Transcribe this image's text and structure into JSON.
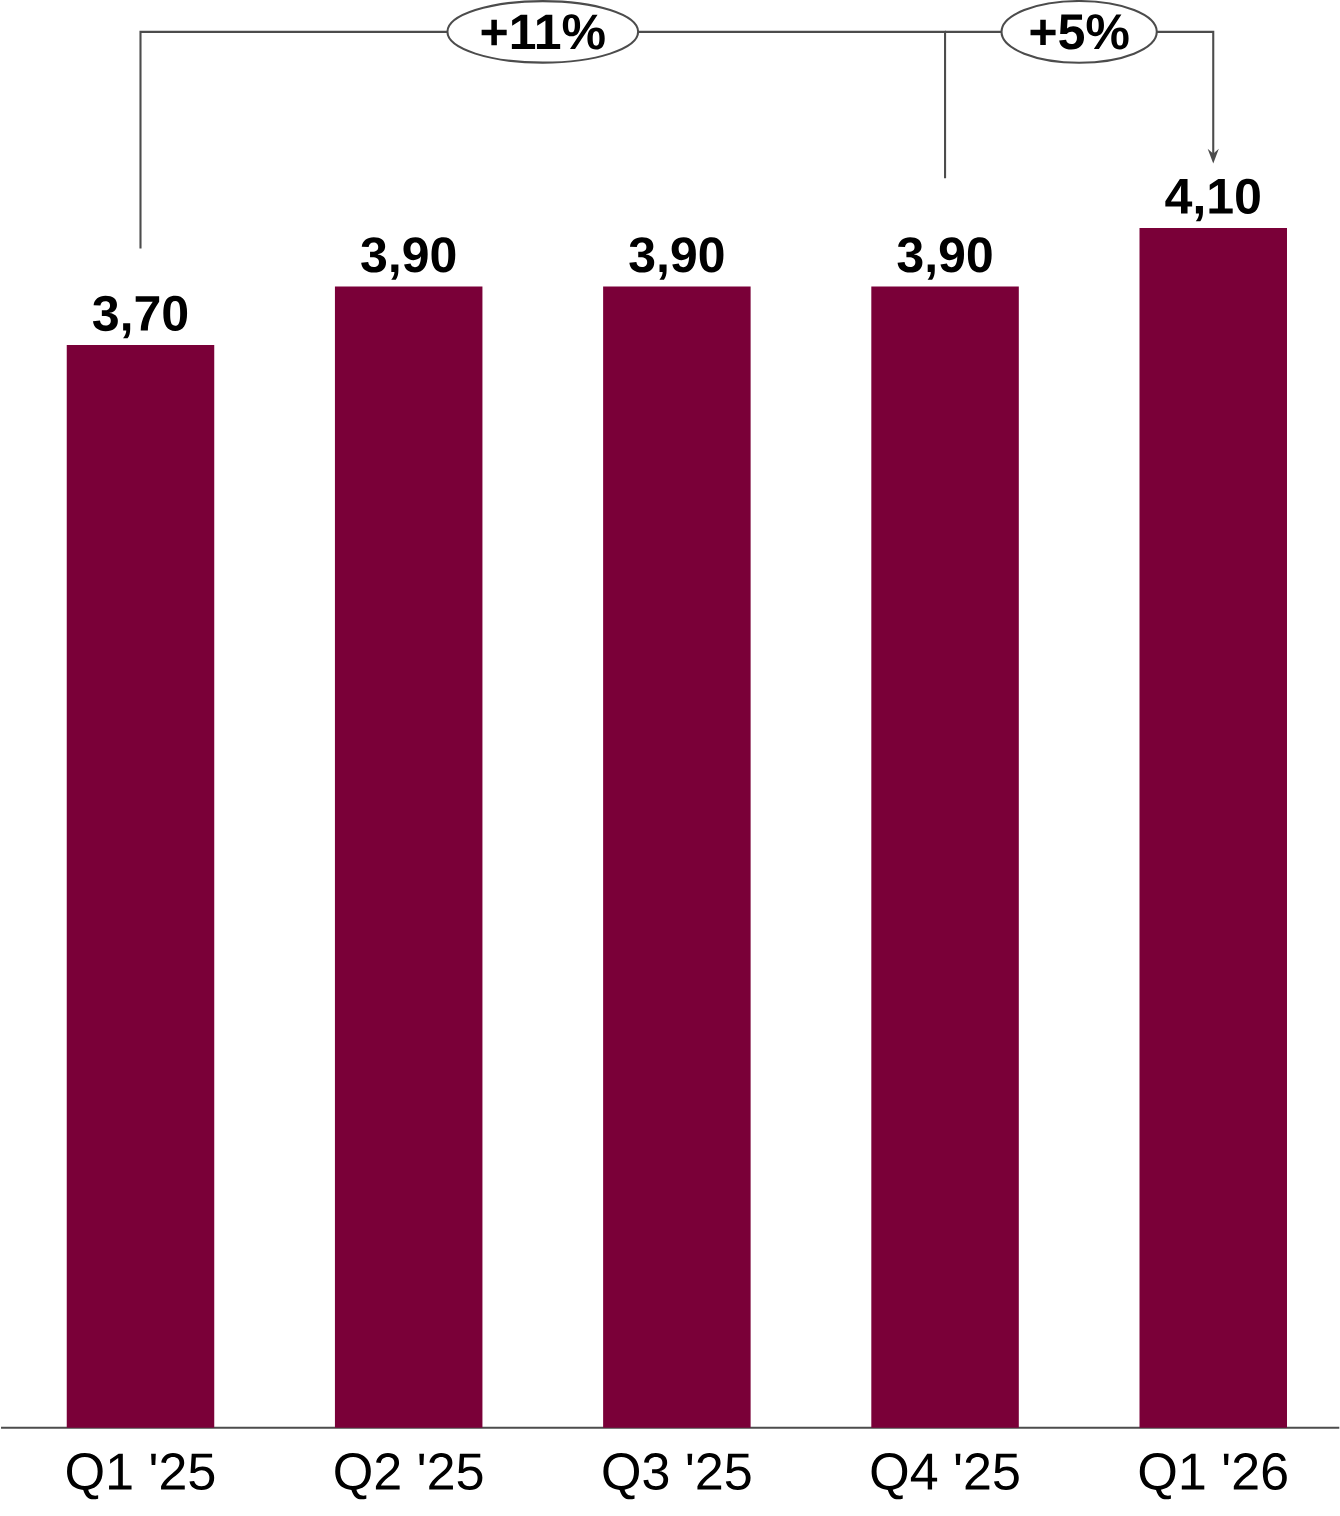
{
  "chart_data": {
    "type": "bar",
    "categories": [
      "Q1 '25",
      "Q2 '25",
      "Q3 '25",
      "Q4 '25",
      "Q1 '26"
    ],
    "values": [
      3.7,
      3.9,
      3.9,
      3.9,
      4.1
    ],
    "value_labels": [
      "3,70",
      "3,90",
      "3,90",
      "3,90",
      "4,10"
    ],
    "color": "#7a0038",
    "annotations": [
      "+11%",
      "+5%"
    ]
  }
}
